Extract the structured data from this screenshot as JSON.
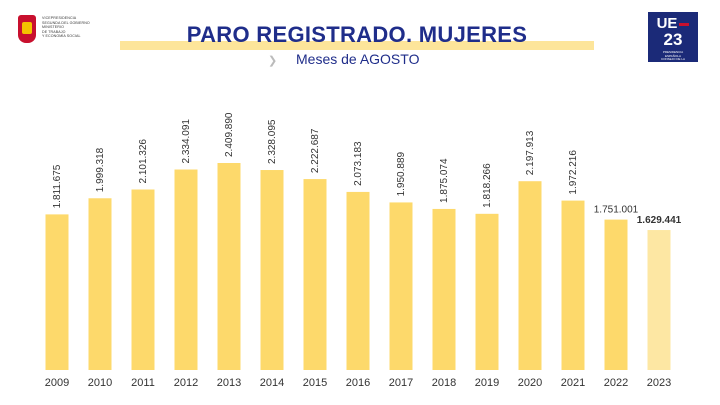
{
  "header": {
    "title": "PARO REGISTRADO. MUJERES",
    "subtitle": "Meses de AGOSTO",
    "logo_lines": [
      "VICEPRESIDENCIA",
      "SEGUNDA DEL GOBIERNO",
      "",
      "MINISTERIO",
      "DE TRABAJO",
      "Y ECONOMÍA SOCIAL"
    ],
    "badge": {
      "top": "UE",
      "number": "23",
      "sub_lines": [
        "PRESIDENCIA",
        "ESPAÑOLA",
        "CONSEJO DE LA",
        "UNIÓN EUROPEA"
      ]
    }
  },
  "colors": {
    "bar": "#fdd96b",
    "bar_last": "#fde7a3",
    "title": "#1f2d8a",
    "band": "#fde59a"
  },
  "chart_data": {
    "type": "bar",
    "title": "PARO REGISTRADO. MUJERES",
    "subtitle": "Meses de AGOSTO",
    "xlabel": "",
    "ylabel": "",
    "categories": [
      "2009",
      "2010",
      "2011",
      "2012",
      "2013",
      "2014",
      "2015",
      "2016",
      "2017",
      "2018",
      "2019",
      "2020",
      "2021",
      "2022",
      "2023"
    ],
    "values": [
      1811675,
      1999318,
      2101326,
      2334091,
      2409890,
      2328095,
      2222687,
      2073183,
      1950889,
      1875074,
      1818266,
      2197913,
      1972216,
      1751001,
      1629441
    ],
    "labels": [
      "1.811.675",
      "1.999.318",
      "2.101.326",
      "2.334.091",
      "2.409.890",
      "2.328.095",
      "2.222.687",
      "2.073.183",
      "1.950.889",
      "1.875.074",
      "1.818.266",
      "2.197.913",
      "1.972.216",
      "1.751.001",
      "1.629.441"
    ],
    "ylim": [
      0,
      2409890
    ],
    "grid": false,
    "legend": "none"
  }
}
